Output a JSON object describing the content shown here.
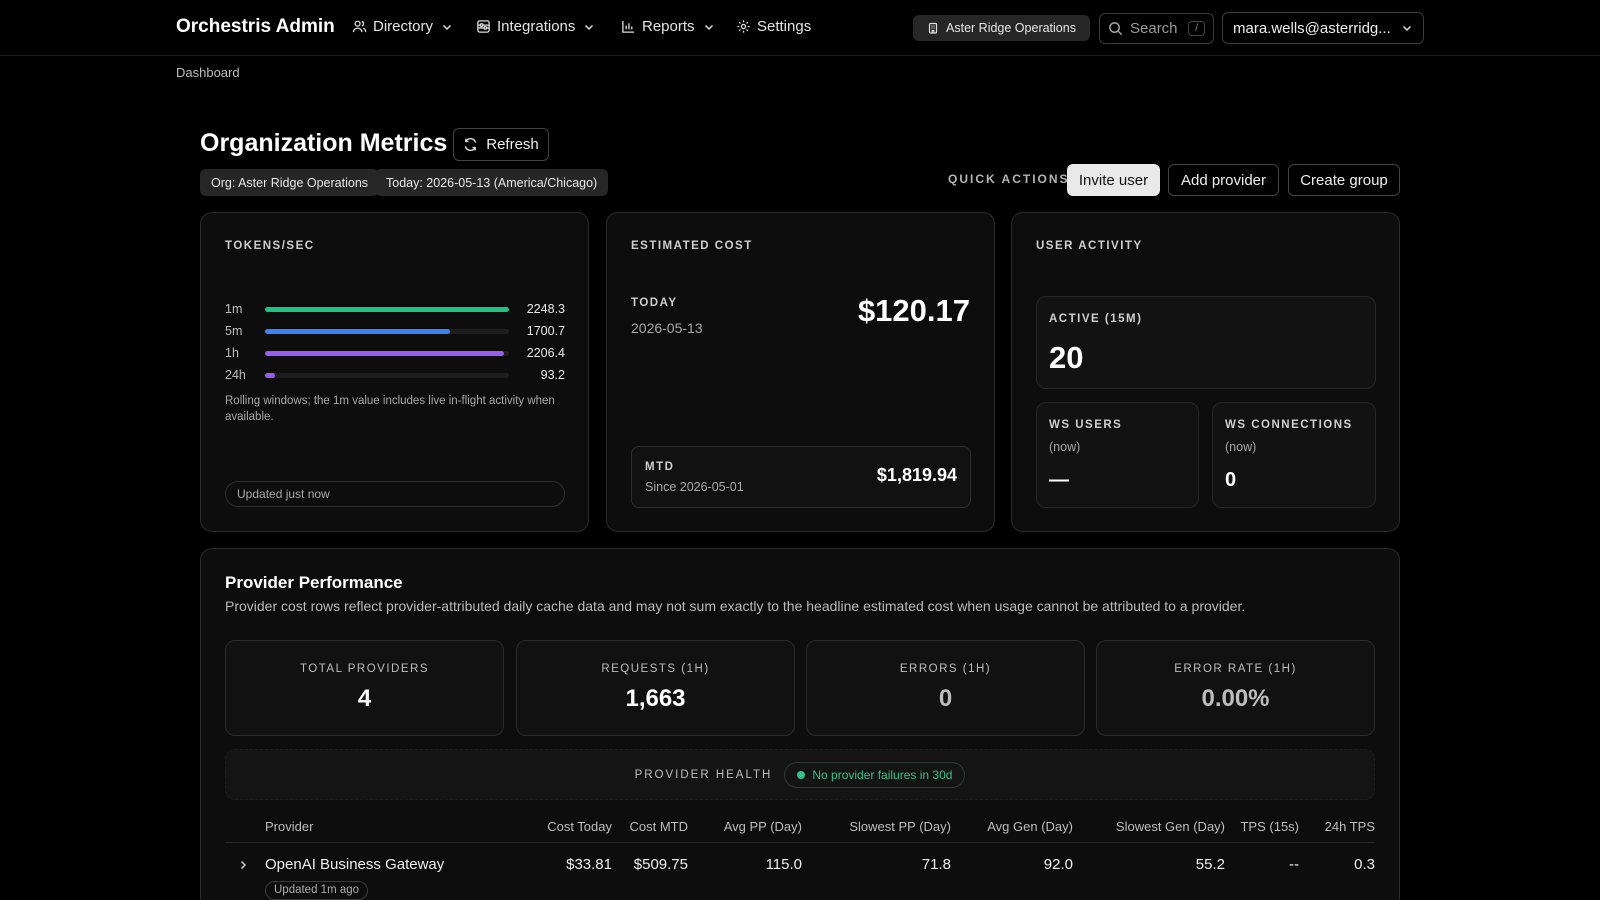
{
  "app": {
    "brand": "Orchestris Admin"
  },
  "nav": {
    "directory": "Directory",
    "integrations": "Integrations",
    "reports": "Reports",
    "settings": "Settings"
  },
  "org_button": "Aster Ridge Operations",
  "search": {
    "label": "Search",
    "shortcut": "/"
  },
  "user_menu": "mara.wells@asterridg...",
  "breadcrumb": "Dashboard",
  "page": {
    "title": "Organization Metrics",
    "refresh_label": "Refresh",
    "org_chip": "Org: Aster Ridge Operations",
    "today_chip": "Today: 2026-05-13 (America/Chicago)"
  },
  "quick_actions": {
    "label": "QUICK ACTIONS",
    "invite": "Invite user",
    "add_provider": "Add provider",
    "create_group": "Create group"
  },
  "tokens": {
    "label": "TOKENS/SEC",
    "rows": [
      {
        "window": "1m",
        "value": "2248.3",
        "fill_fraction": 1.0,
        "color": "#20c482"
      },
      {
        "window": "5m",
        "value": "1700.7",
        "fill_fraction": 0.76,
        "color": "#3b82f6"
      },
      {
        "window": "1h",
        "value": "2206.4",
        "fill_fraction": 0.98,
        "color": "#9b5cf6"
      },
      {
        "window": "24h",
        "value": "93.2",
        "fill_fraction": 0.04,
        "color": "#9b5cf6"
      }
    ],
    "note": "Rolling windows; the 1m value includes live in-flight activity when available.",
    "updated": "Updated just now"
  },
  "cost": {
    "label": "ESTIMATED COST",
    "today_label": "TODAY",
    "today_date": "2026-05-13",
    "today_value": "$120.17",
    "mtd_label": "MTD",
    "mtd_since": "Since 2026-05-01",
    "mtd_value": "$1,819.94"
  },
  "activity": {
    "label": "USER ACTIVITY",
    "active_label": "ACTIVE (15M)",
    "active_value": "20",
    "ws_users_label": "WS USERS",
    "ws_users_sub": "(now)",
    "ws_users_value": "—",
    "ws_conn_label": "WS CONNECTIONS",
    "ws_conn_sub": "(now)",
    "ws_conn_value": "0"
  },
  "perf": {
    "title": "Provider Performance",
    "desc": "Provider cost rows reflect provider-attributed daily cache data and may not sum exactly to the headline estimated cost when usage cannot be attributed to a provider.",
    "stats": [
      {
        "label": "TOTAL PROVIDERS",
        "value": "4"
      },
      {
        "label": "REQUESTS (1H)",
        "value": "1,663"
      },
      {
        "label": "ERRORS (1H)",
        "value": "0"
      },
      {
        "label": "ERROR RATE (1H)",
        "value": "0.00%"
      }
    ],
    "health_label": "PROVIDER HEALTH",
    "health_status": "No provider failures in 30d",
    "columns": [
      "Provider",
      "Cost Today",
      "Cost MTD",
      "Avg PP (Day)",
      "Slowest PP (Day)",
      "Avg Gen (Day)",
      "Slowest Gen (Day)",
      "TPS (15s)",
      "24h TPS"
    ],
    "rows": [
      {
        "provider": "OpenAI Business Gateway",
        "updated": "Updated 1m ago",
        "cost_today": "$33.81",
        "cost_mtd": "$509.75",
        "avg_pp": "115.0",
        "slowest_pp": "71.8",
        "avg_gen": "92.0",
        "slowest_gen": "55.2",
        "tps_15s": "--",
        "tps_24h": "0.3"
      }
    ]
  }
}
